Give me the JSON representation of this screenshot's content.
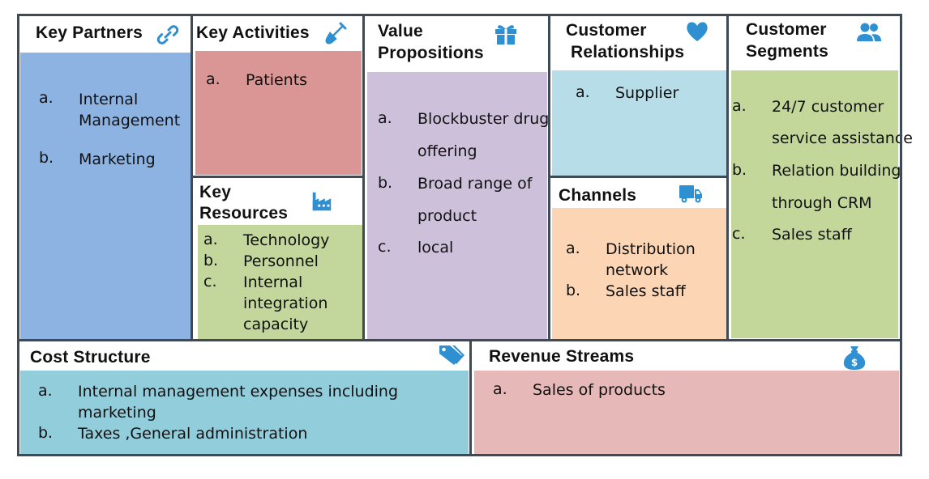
{
  "colors": {
    "border": "#3e4a56",
    "icon": "#2e8fd1",
    "key_partners": "#8db3e2",
    "key_activities": "#da9694",
    "key_resources": "#c3d69b",
    "value_propositions": "#ccc0da",
    "customer_relationships": "#b7dde8",
    "channels": "#fcd5b4",
    "customer_segments": "#c4d79b",
    "cost_structure": "#92cddc",
    "revenue_streams": "#e6b8b7"
  },
  "key_partners": {
    "title": "Key Partners",
    "icon": "link-icon",
    "items": [
      {
        "letter": "a.",
        "text1": "Internal",
        "text2": "Management"
      },
      {
        "letter": "b.",
        "text1": "Marketing"
      }
    ]
  },
  "key_activities": {
    "title": "Key Activities",
    "icon": "shovel-icon",
    "items": [
      {
        "letter": "a.",
        "text1": "Patients"
      }
    ]
  },
  "key_resources": {
    "title_line1": "Key",
    "title_line2": "Resources",
    "icon": "factory-icon",
    "items": [
      {
        "letter": "a.",
        "text1": "Technology"
      },
      {
        "letter": "b.",
        "text1": "Personnel"
      },
      {
        "letter": "c.",
        "text1": "Internal",
        "text2": "integration",
        "text3": "capacity"
      }
    ]
  },
  "value_propositions": {
    "title_line1": "Value",
    "title_line2": "Propositions",
    "icon": "gift-icon",
    "items": [
      {
        "letter": "a.",
        "text1": "Blockbuster drug",
        "text2": "offering"
      },
      {
        "letter": "b.",
        "text1": "Broad range of",
        "text2": "product"
      },
      {
        "letter": "c.",
        "text1": "local"
      }
    ]
  },
  "customer_relationships": {
    "title_line1": "Customer",
    "title_line2": "Relationships",
    "icon": "heart-icon",
    "items": [
      {
        "letter": "a.",
        "text1": "Supplier"
      }
    ]
  },
  "channels": {
    "title": "Channels",
    "icon": "truck-icon",
    "items": [
      {
        "letter": "a.",
        "text1": "Distribution",
        "text2": "network"
      },
      {
        "letter": "b.",
        "text1": "Sales staff"
      }
    ]
  },
  "customer_segments": {
    "title_line1": "Customer",
    "title_line2": "Segments",
    "icon": "users-icon",
    "items": [
      {
        "letter": "a.",
        "text1": "24/7 customer",
        "text2": "service assistance"
      },
      {
        "letter": "b.",
        "text1": "Relation building",
        "text2": "through CRM"
      },
      {
        "letter": "c.",
        "text1": "Sales staff"
      }
    ]
  },
  "cost_structure": {
    "title": "Cost Structure",
    "icon": "price-tag-icon",
    "items": [
      {
        "letter": "a.",
        "text1": "Internal management expenses including",
        "text2": "marketing"
      },
      {
        "letter": "b.",
        "text1": "Taxes ,General administration"
      }
    ]
  },
  "revenue_streams": {
    "title": "Revenue Streams",
    "icon": "money-bag-icon",
    "items": [
      {
        "letter": "a.",
        "text1": "Sales of products"
      }
    ]
  }
}
